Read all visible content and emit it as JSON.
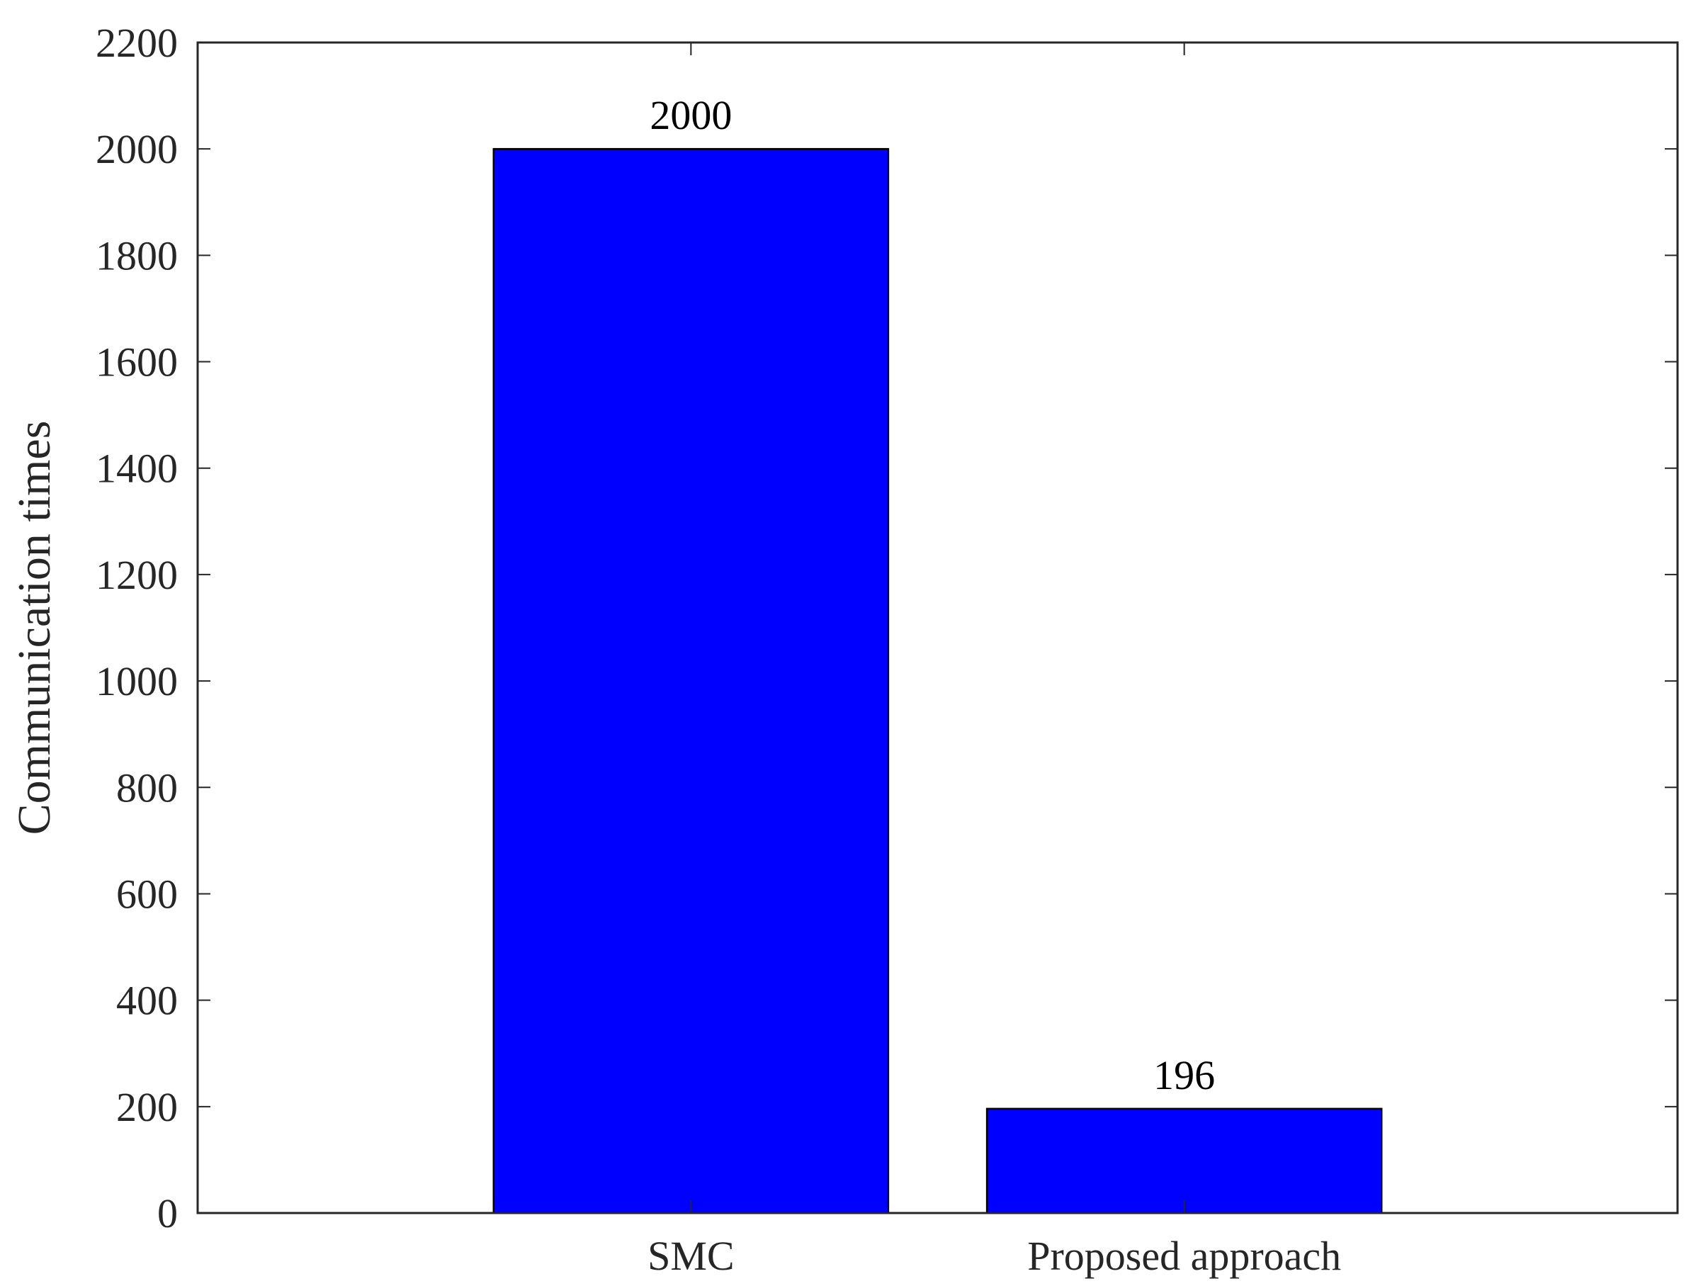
{
  "chart_data": {
    "type": "bar",
    "title": "",
    "xlabel": "",
    "ylabel": "Communication times",
    "categories": [
      "SMC",
      "Proposed approach"
    ],
    "values": [
      2000,
      196
    ],
    "data_labels": [
      "2000",
      "196"
    ],
    "ylim": [
      0,
      2200
    ],
    "yticks": [
      0,
      200,
      400,
      600,
      800,
      1000,
      1200,
      1400,
      1600,
      1800,
      2000,
      2200
    ],
    "ytick_labels": [
      "0",
      "200",
      "400",
      "600",
      "800",
      "1000",
      "1200",
      "1400",
      "1600",
      "1800",
      "2000",
      "2200"
    ],
    "grid": false,
    "legend": "none",
    "colors": {
      "bar_fill": "#0000FF",
      "bar_edge": "#000000",
      "axis": "#262626"
    }
  }
}
